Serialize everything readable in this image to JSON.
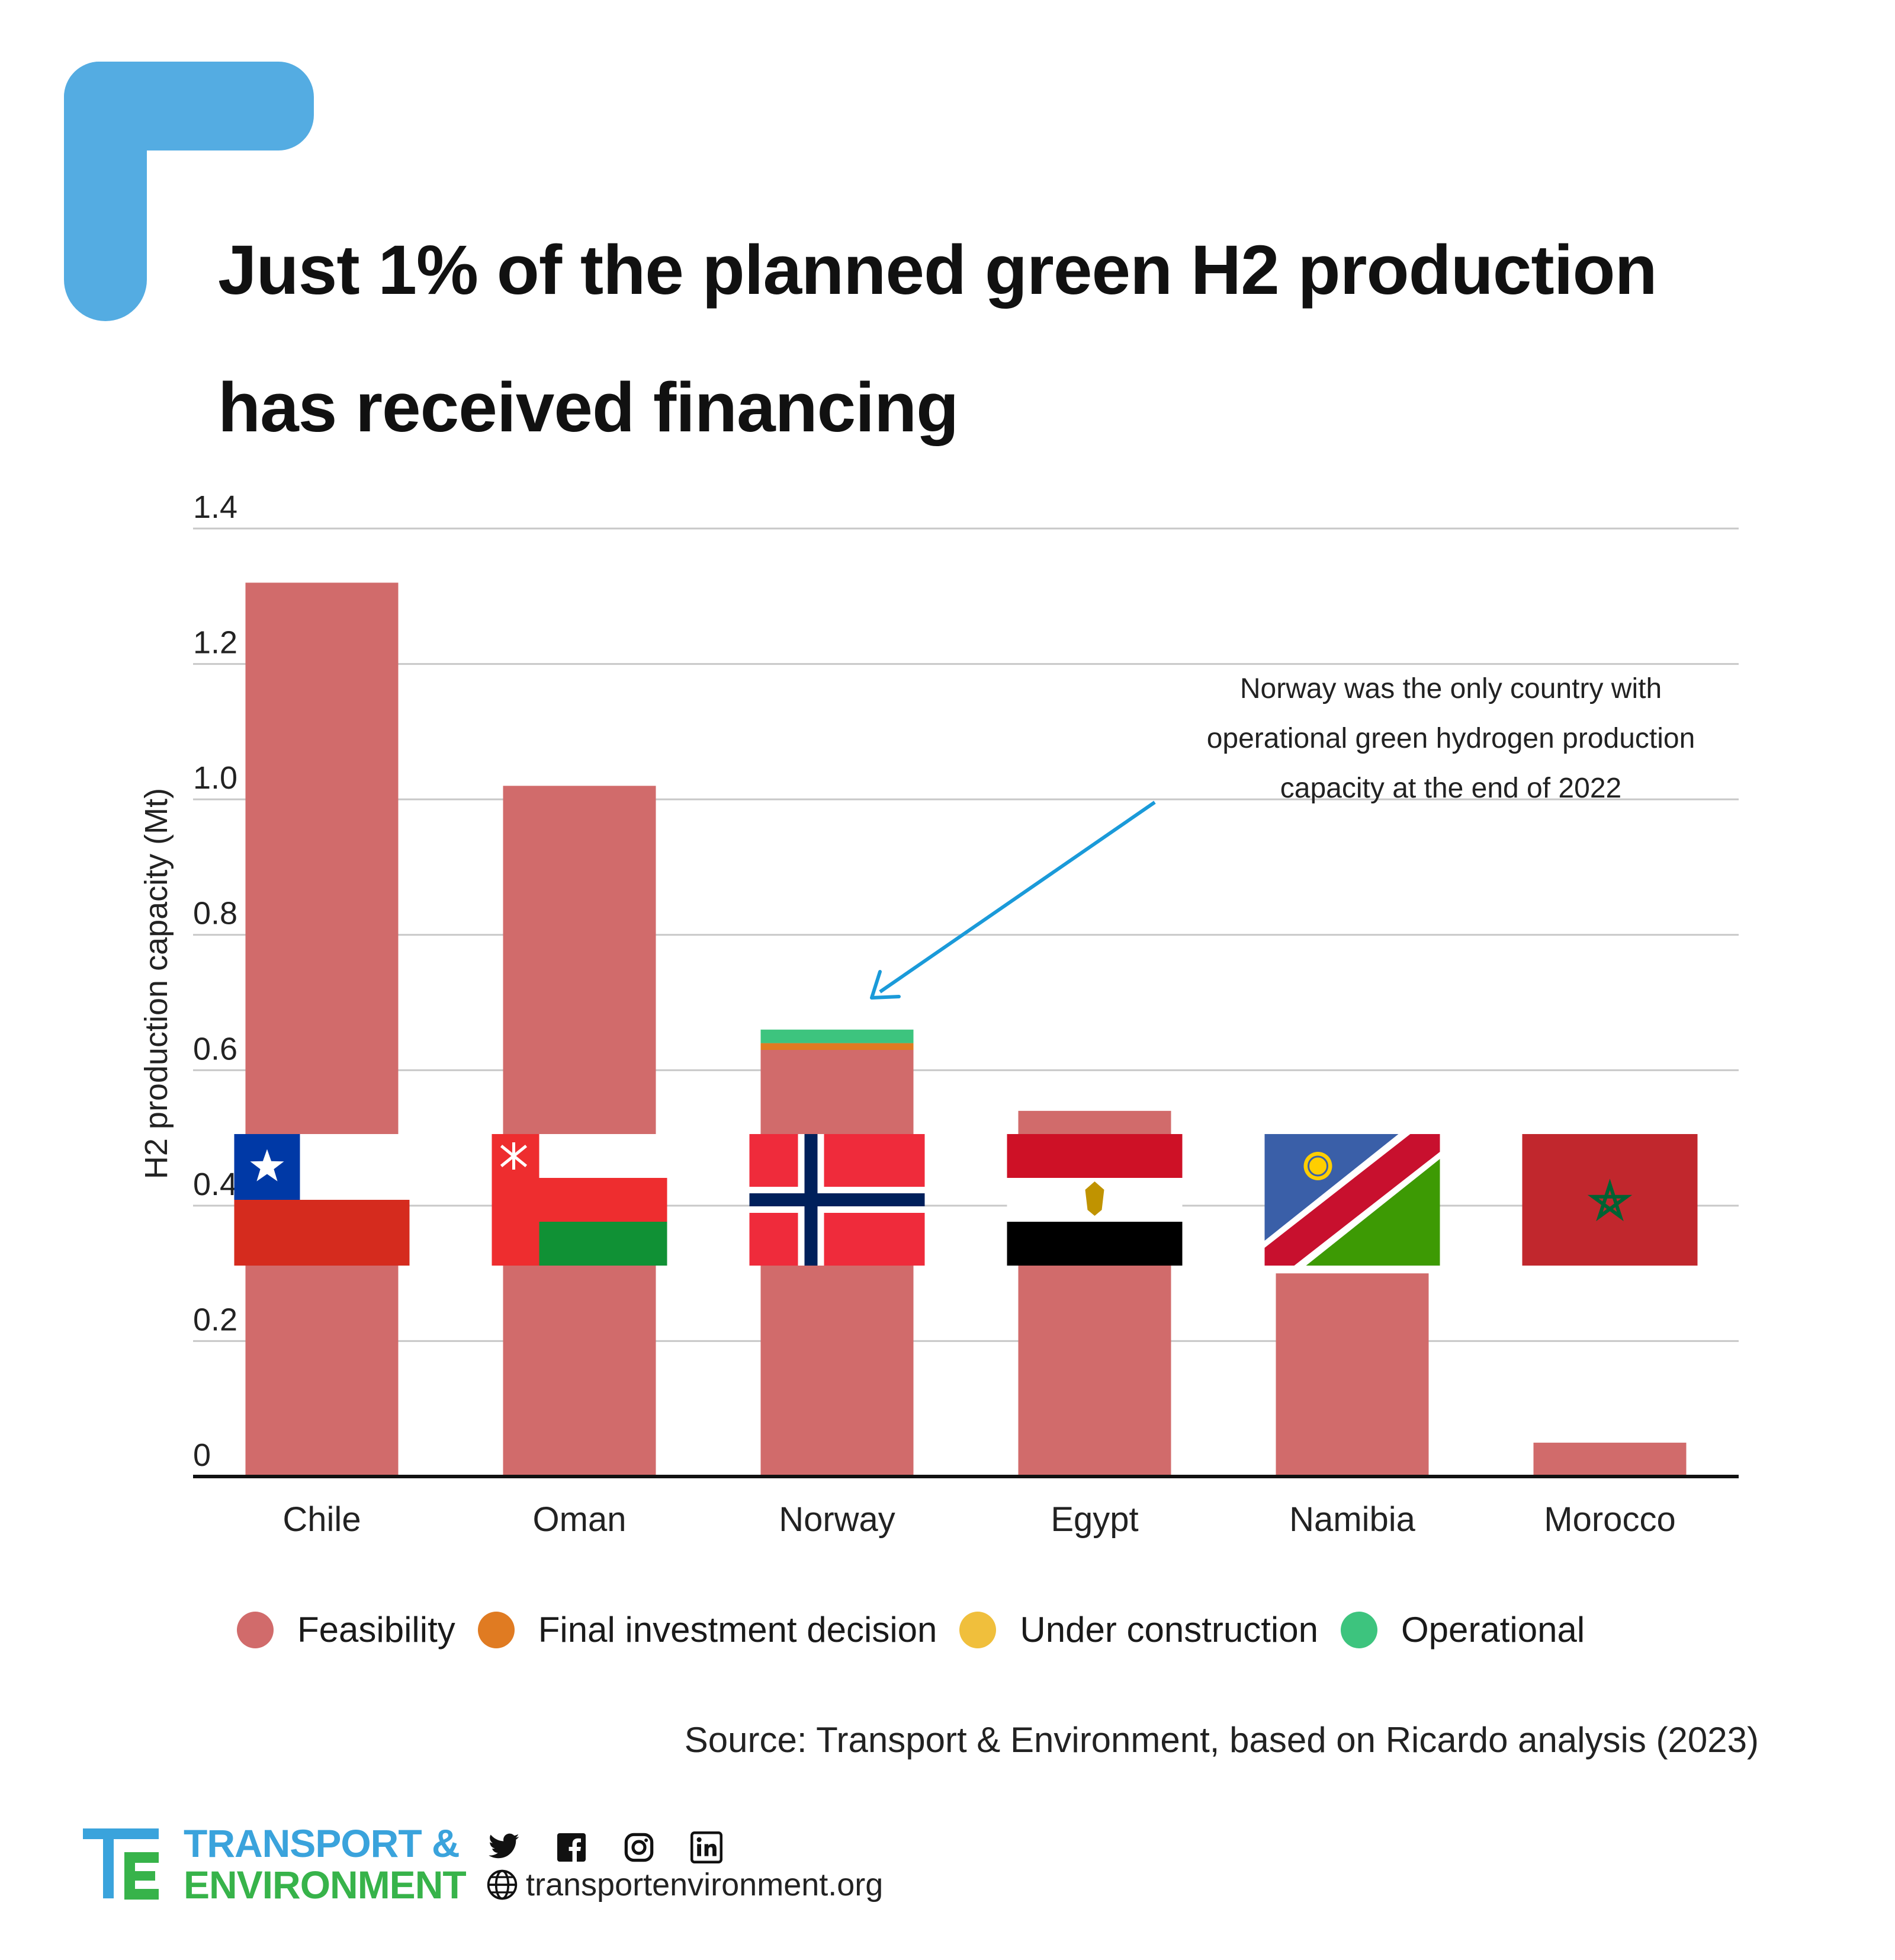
{
  "title_lines": [
    "Just 1% of the planned green H2 production",
    "has received financing"
  ],
  "chart_data": {
    "type": "bar",
    "stacked": true,
    "categories": [
      "Chile",
      "Oman",
      "Norway",
      "Egypt",
      "Namibia",
      "Morocco"
    ],
    "series": [
      {
        "name": "Feasibility",
        "color": "#d16b6b",
        "values": [
          1.32,
          1.02,
          0.63,
          0.54,
          0.3,
          0.05
        ]
      },
      {
        "name": "Final investment decision",
        "color": "#e07b22",
        "values": [
          0,
          0,
          0.01,
          0,
          0,
          0
        ]
      },
      {
        "name": "Under construction",
        "color": "#f0bf3c",
        "values": [
          0,
          0,
          0,
          0,
          0,
          0
        ]
      },
      {
        "name": "Operational",
        "color": "#3dc47e",
        "values": [
          0,
          0,
          0.02,
          0,
          0,
          0
        ]
      }
    ],
    "ylabel": "H2 production capacity (Mt)",
    "ylim": [
      0,
      1.4
    ],
    "yticks": [
      "0",
      "0.2",
      "0.4",
      "0.6",
      "0.8",
      "1.0",
      "1.2",
      "1.4"
    ],
    "grid": true,
    "legend_position": "bottom",
    "annotation": {
      "lines": [
        "Norway was the only country with",
        "operational green hydrogen production",
        "capacity at the end of 2022"
      ],
      "target": "Norway",
      "arrow_color": "#1a9ad9"
    },
    "flags": [
      "chile-flag",
      "oman-flag",
      "norway-flag",
      "egypt-flag",
      "namibia-flag",
      "morocco-flag"
    ]
  },
  "source": "Source: Transport & Environment, based on Ricardo analysis (2023)",
  "footer": {
    "brand_line1": "TRANSPORT &",
    "brand_line2": "ENVIRONMENT",
    "website": "transportenvironment.org",
    "social_icons": [
      "twitter-icon",
      "facebook-icon",
      "instagram-icon",
      "linkedin-icon"
    ]
  },
  "colors": {
    "accent": "#54ace2",
    "brand_blue": "#3aa3dc",
    "brand_green": "#37b34a"
  }
}
